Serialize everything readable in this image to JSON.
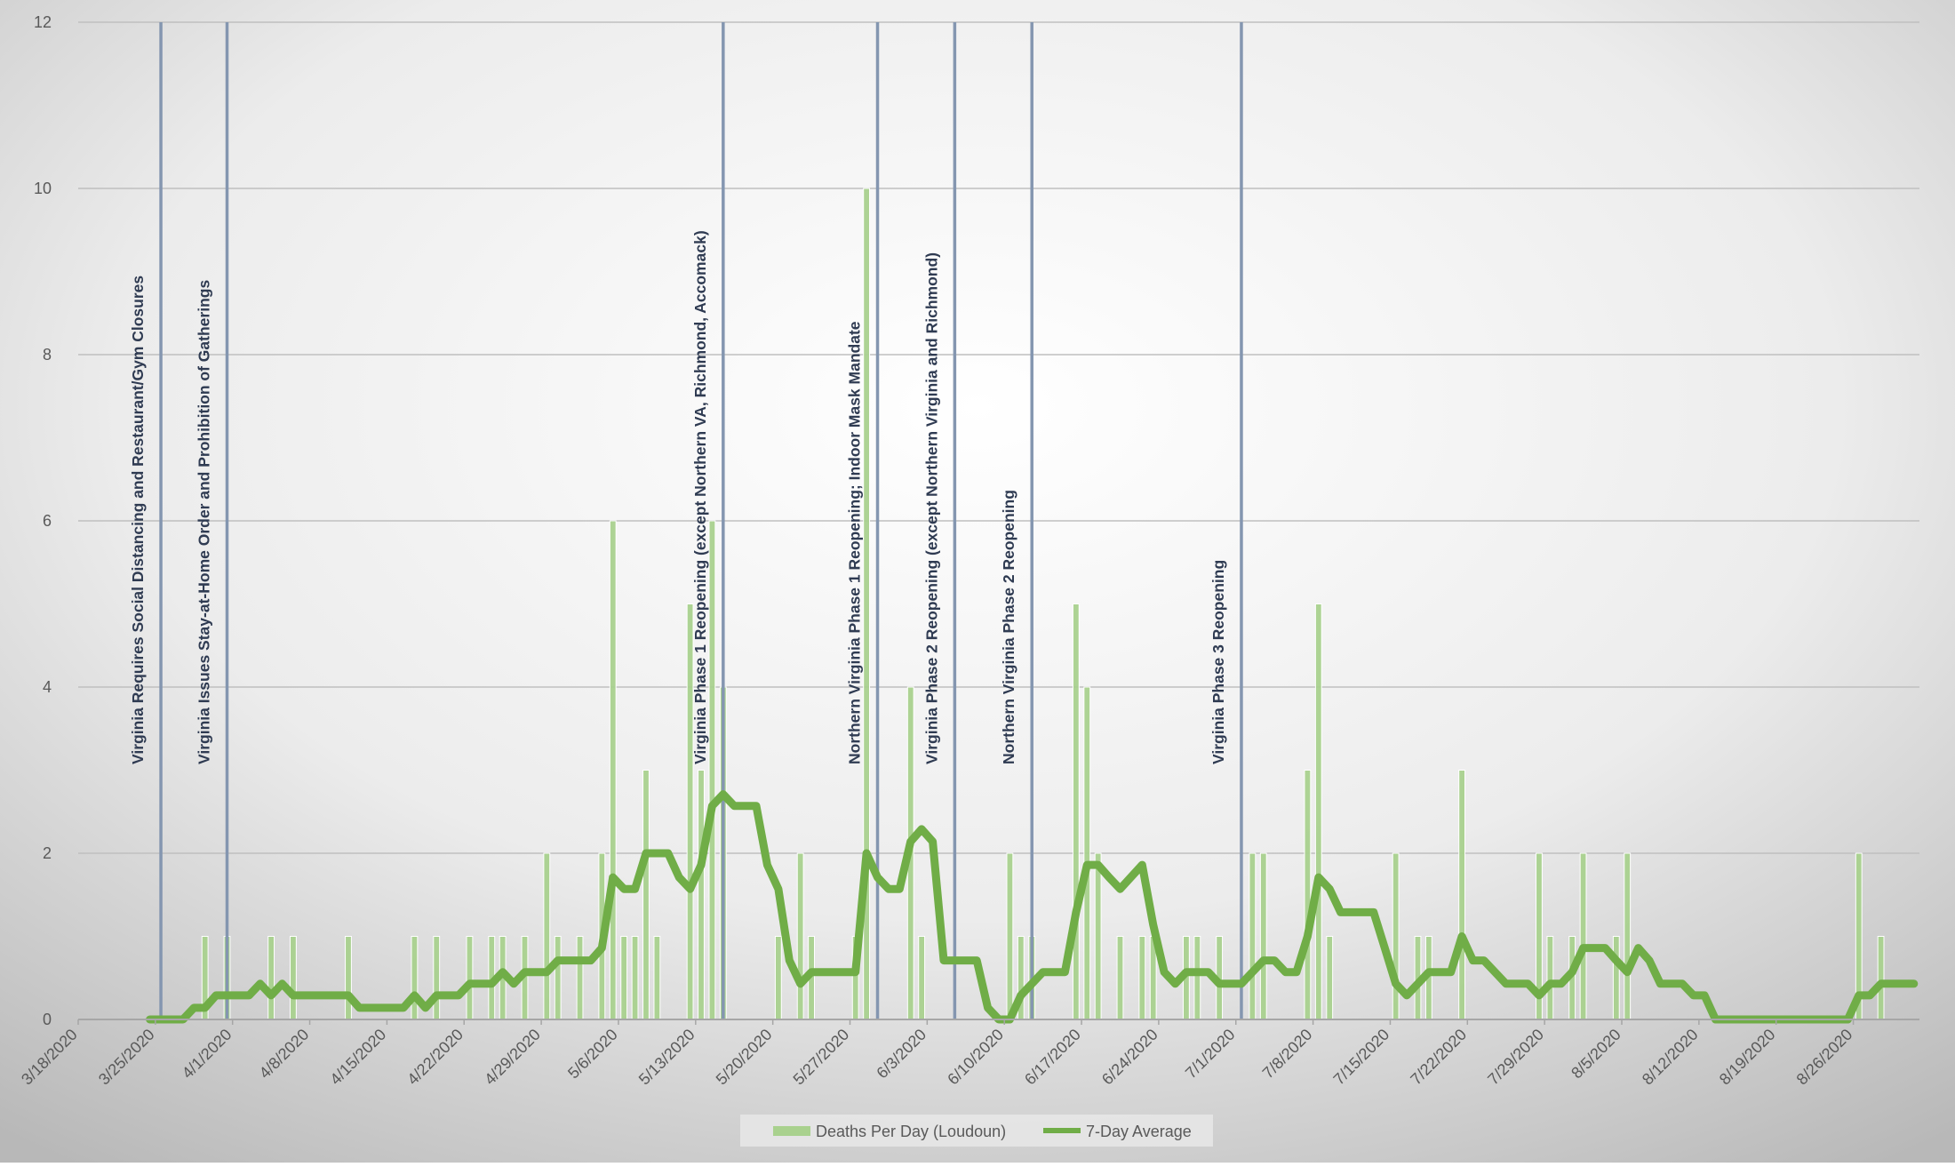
{
  "chart_data": {
    "type": "bar",
    "title": "",
    "xlabel": "",
    "ylabel": "",
    "x_start": "2020-03-18",
    "x_end": "2020-08-31",
    "ylim": [
      0,
      12
    ],
    "yticks": [
      0,
      2,
      4,
      6,
      8,
      10,
      12
    ],
    "xtick_labels": [
      "3/18/2020",
      "3/25/2020",
      "4/1/2020",
      "4/8/2020",
      "4/15/2020",
      "4/22/2020",
      "4/29/2020",
      "5/6/2020",
      "5/13/2020",
      "5/20/2020",
      "5/27/2020",
      "6/3/2020",
      "6/10/2020",
      "6/17/2020",
      "6/24/2020",
      "7/1/2020",
      "7/8/2020",
      "7/15/2020",
      "7/22/2020",
      "7/29/2020",
      "8/5/2020",
      "8/12/2020",
      "8/19/2020",
      "8/26/2020"
    ],
    "grid": true,
    "legend_position": "bottom",
    "colors": {
      "bars": "#a9d18e",
      "line": "#70ad47",
      "event_lines": "#8496b0",
      "grid": "#bfbfbf",
      "axis_text": "#595959",
      "annotation_text": "#2f3b52"
    },
    "series": [
      {
        "name": "Deaths Per Day (Loudoun)",
        "kind": "bar",
        "points": [
          {
            "x": "2020-03-29",
            "y": 1
          },
          {
            "x": "2020-03-31",
            "y": 1
          },
          {
            "x": "2020-04-04",
            "y": 1
          },
          {
            "x": "2020-04-06",
            "y": 1
          },
          {
            "x": "2020-04-11",
            "y": 1
          },
          {
            "x": "2020-04-17",
            "y": 1
          },
          {
            "x": "2020-04-19",
            "y": 1
          },
          {
            "x": "2020-04-22",
            "y": 1
          },
          {
            "x": "2020-04-24",
            "y": 1
          },
          {
            "x": "2020-04-25",
            "y": 1
          },
          {
            "x": "2020-04-27",
            "y": 1
          },
          {
            "x": "2020-04-29",
            "y": 2
          },
          {
            "x": "2020-04-30",
            "y": 1
          },
          {
            "x": "2020-05-02",
            "y": 1
          },
          {
            "x": "2020-05-04",
            "y": 2
          },
          {
            "x": "2020-05-05",
            "y": 6
          },
          {
            "x": "2020-05-06",
            "y": 1
          },
          {
            "x": "2020-05-07",
            "y": 1
          },
          {
            "x": "2020-05-08",
            "y": 3
          },
          {
            "x": "2020-05-09",
            "y": 1
          },
          {
            "x": "2020-05-12",
            "y": 5
          },
          {
            "x": "2020-05-13",
            "y": 3
          },
          {
            "x": "2020-05-14",
            "y": 6
          },
          {
            "x": "2020-05-15",
            "y": 4
          },
          {
            "x": "2020-05-20",
            "y": 1
          },
          {
            "x": "2020-05-22",
            "y": 2
          },
          {
            "x": "2020-05-23",
            "y": 1
          },
          {
            "x": "2020-05-27",
            "y": 1
          },
          {
            "x": "2020-05-28",
            "y": 10
          },
          {
            "x": "2020-06-01",
            "y": 4
          },
          {
            "x": "2020-06-02",
            "y": 1
          },
          {
            "x": "2020-06-10",
            "y": 2
          },
          {
            "x": "2020-06-11",
            "y": 1
          },
          {
            "x": "2020-06-12",
            "y": 1
          },
          {
            "x": "2020-06-16",
            "y": 5
          },
          {
            "x": "2020-06-17",
            "y": 4
          },
          {
            "x": "2020-06-18",
            "y": 2
          },
          {
            "x": "2020-06-20",
            "y": 1
          },
          {
            "x": "2020-06-22",
            "y": 1
          },
          {
            "x": "2020-06-23",
            "y": 1
          },
          {
            "x": "2020-06-26",
            "y": 1
          },
          {
            "x": "2020-06-27",
            "y": 1
          },
          {
            "x": "2020-06-29",
            "y": 1
          },
          {
            "x": "2020-07-02",
            "y": 2
          },
          {
            "x": "2020-07-03",
            "y": 2
          },
          {
            "x": "2020-07-07",
            "y": 3
          },
          {
            "x": "2020-07-08",
            "y": 5
          },
          {
            "x": "2020-07-09",
            "y": 1
          },
          {
            "x": "2020-07-15",
            "y": 2
          },
          {
            "x": "2020-07-17",
            "y": 1
          },
          {
            "x": "2020-07-18",
            "y": 1
          },
          {
            "x": "2020-07-21",
            "y": 3
          },
          {
            "x": "2020-07-28",
            "y": 2
          },
          {
            "x": "2020-07-29",
            "y": 1
          },
          {
            "x": "2020-07-31",
            "y": 1
          },
          {
            "x": "2020-08-01",
            "y": 2
          },
          {
            "x": "2020-08-04",
            "y": 1
          },
          {
            "x": "2020-08-05",
            "y": 2
          },
          {
            "x": "2020-08-26",
            "y": 2
          },
          {
            "x": "2020-08-28",
            "y": 1
          }
        ]
      },
      {
        "name": "7-Day Average",
        "kind": "line",
        "points": [
          {
            "x": "2020-03-24",
            "y": 0
          },
          {
            "x": "2020-03-26",
            "y": 0
          },
          {
            "x": "2020-03-27",
            "y": 0
          },
          {
            "x": "2020-03-28",
            "y": 0.14
          },
          {
            "x": "2020-03-29",
            "y": 0.14
          },
          {
            "x": "2020-03-30",
            "y": 0.29
          },
          {
            "x": "2020-04-02",
            "y": 0.29
          },
          {
            "x": "2020-04-03",
            "y": 0.43
          },
          {
            "x": "2020-04-04",
            "y": 0.29
          },
          {
            "x": "2020-04-05",
            "y": 0.43
          },
          {
            "x": "2020-04-06",
            "y": 0.29
          },
          {
            "x": "2020-04-11",
            "y": 0.29
          },
          {
            "x": "2020-04-12",
            "y": 0.14
          },
          {
            "x": "2020-04-16",
            "y": 0.14
          },
          {
            "x": "2020-04-17",
            "y": 0.29
          },
          {
            "x": "2020-04-18",
            "y": 0.14
          },
          {
            "x": "2020-04-19",
            "y": 0.29
          },
          {
            "x": "2020-04-21",
            "y": 0.29
          },
          {
            "x": "2020-04-22",
            "y": 0.43
          },
          {
            "x": "2020-04-24",
            "y": 0.43
          },
          {
            "x": "2020-04-25",
            "y": 0.57
          },
          {
            "x": "2020-04-26",
            "y": 0.43
          },
          {
            "x": "2020-04-27",
            "y": 0.57
          },
          {
            "x": "2020-04-29",
            "y": 0.57
          },
          {
            "x": "2020-04-30",
            "y": 0.71
          },
          {
            "x": "2020-05-03",
            "y": 0.71
          },
          {
            "x": "2020-05-04",
            "y": 0.86
          },
          {
            "x": "2020-05-05",
            "y": 1.71
          },
          {
            "x": "2020-05-06",
            "y": 1.57
          },
          {
            "x": "2020-05-07",
            "y": 1.57
          },
          {
            "x": "2020-05-08",
            "y": 2.0
          },
          {
            "x": "2020-05-09",
            "y": 2.0
          },
          {
            "x": "2020-05-10",
            "y": 2.0
          },
          {
            "x": "2020-05-11",
            "y": 1.71
          },
          {
            "x": "2020-05-12",
            "y": 1.57
          },
          {
            "x": "2020-05-13",
            "y": 1.86
          },
          {
            "x": "2020-05-14",
            "y": 2.57
          },
          {
            "x": "2020-05-15",
            "y": 2.71
          },
          {
            "x": "2020-05-16",
            "y": 2.57
          },
          {
            "x": "2020-05-18",
            "y": 2.57
          },
          {
            "x": "2020-05-19",
            "y": 1.86
          },
          {
            "x": "2020-05-20",
            "y": 1.57
          },
          {
            "x": "2020-05-21",
            "y": 0.71
          },
          {
            "x": "2020-05-22",
            "y": 0.43
          },
          {
            "x": "2020-05-23",
            "y": 0.57
          },
          {
            "x": "2020-05-27",
            "y": 0.57
          },
          {
            "x": "2020-05-28",
            "y": 2.0
          },
          {
            "x": "2020-05-29",
            "y": 1.71
          },
          {
            "x": "2020-05-30",
            "y": 1.57
          },
          {
            "x": "2020-05-31",
            "y": 1.57
          },
          {
            "x": "2020-06-01",
            "y": 2.14
          },
          {
            "x": "2020-06-02",
            "y": 2.29
          },
          {
            "x": "2020-06-03",
            "y": 2.14
          },
          {
            "x": "2020-06-04",
            "y": 0.71
          },
          {
            "x": "2020-06-07",
            "y": 0.71
          },
          {
            "x": "2020-06-08",
            "y": 0.14
          },
          {
            "x": "2020-06-09",
            "y": 0
          },
          {
            "x": "2020-06-10",
            "y": 0
          },
          {
            "x": "2020-06-11",
            "y": 0.29
          },
          {
            "x": "2020-06-12",
            "y": 0.43
          },
          {
            "x": "2020-06-13",
            "y": 0.57
          },
          {
            "x": "2020-06-15",
            "y": 0.57
          },
          {
            "x": "2020-06-16",
            "y": 1.29
          },
          {
            "x": "2020-06-17",
            "y": 1.86
          },
          {
            "x": "2020-06-18",
            "y": 1.86
          },
          {
            "x": "2020-06-19",
            "y": 1.71
          },
          {
            "x": "2020-06-20",
            "y": 1.57
          },
          {
            "x": "2020-06-22",
            "y": 1.86
          },
          {
            "x": "2020-06-23",
            "y": 1.14
          },
          {
            "x": "2020-06-24",
            "y": 0.57
          },
          {
            "x": "2020-06-25",
            "y": 0.43
          },
          {
            "x": "2020-06-26",
            "y": 0.57
          },
          {
            "x": "2020-06-28",
            "y": 0.57
          },
          {
            "x": "2020-06-29",
            "y": 0.43
          },
          {
            "x": "2020-07-01",
            "y": 0.43
          },
          {
            "x": "2020-07-02",
            "y": 0.57
          },
          {
            "x": "2020-07-03",
            "y": 0.71
          },
          {
            "x": "2020-07-04",
            "y": 0.71
          },
          {
            "x": "2020-07-05",
            "y": 0.57
          },
          {
            "x": "2020-07-06",
            "y": 0.57
          },
          {
            "x": "2020-07-07",
            "y": 1.0
          },
          {
            "x": "2020-07-08",
            "y": 1.71
          },
          {
            "x": "2020-07-09",
            "y": 1.57
          },
          {
            "x": "2020-07-10",
            "y": 1.29
          },
          {
            "x": "2020-07-13",
            "y": 1.29
          },
          {
            "x": "2020-07-14",
            "y": 0.86
          },
          {
            "x": "2020-07-15",
            "y": 0.43
          },
          {
            "x": "2020-07-16",
            "y": 0.29
          },
          {
            "x": "2020-07-17",
            "y": 0.43
          },
          {
            "x": "2020-07-18",
            "y": 0.57
          },
          {
            "x": "2020-07-20",
            "y": 0.57
          },
          {
            "x": "2020-07-21",
            "y": 1.0
          },
          {
            "x": "2020-07-22",
            "y": 0.71
          },
          {
            "x": "2020-07-23",
            "y": 0.71
          },
          {
            "x": "2020-07-24",
            "y": 0.57
          },
          {
            "x": "2020-07-25",
            "y": 0.43
          },
          {
            "x": "2020-07-27",
            "y": 0.43
          },
          {
            "x": "2020-07-28",
            "y": 0.29
          },
          {
            "x": "2020-07-29",
            "y": 0.43
          },
          {
            "x": "2020-07-30",
            "y": 0.43
          },
          {
            "x": "2020-07-31",
            "y": 0.57
          },
          {
            "x": "2020-08-01",
            "y": 0.86
          },
          {
            "x": "2020-08-03",
            "y": 0.86
          },
          {
            "x": "2020-08-04",
            "y": 0.71
          },
          {
            "x": "2020-08-05",
            "y": 0.57
          },
          {
            "x": "2020-08-06",
            "y": 0.86
          },
          {
            "x": "2020-08-07",
            "y": 0.71
          },
          {
            "x": "2020-08-08",
            "y": 0.43
          },
          {
            "x": "2020-08-10",
            "y": 0.43
          },
          {
            "x": "2020-08-11",
            "y": 0.29
          },
          {
            "x": "2020-08-12",
            "y": 0.29
          },
          {
            "x": "2020-08-13",
            "y": 0
          },
          {
            "x": "2020-08-25",
            "y": 0
          },
          {
            "x": "2020-08-26",
            "y": 0.29
          },
          {
            "x": "2020-08-27",
            "y": 0.29
          },
          {
            "x": "2020-08-28",
            "y": 0.43
          },
          {
            "x": "2020-08-31",
            "y": 0.43
          }
        ]
      }
    ],
    "annotations": [
      {
        "date": "2020-03-25",
        "label": "Virginia Requires Social Distancing and Restaurant/Gym Closures"
      },
      {
        "date": "2020-03-31",
        "label": "Virginia Issues Stay-at-Home Order and Prohibition of Gatherings"
      },
      {
        "date": "2020-05-15",
        "label": "Virginia Phase 1 Reopening (except Northern VA, Richmond, Accomack)"
      },
      {
        "date": "2020-05-29",
        "label": "Northern Virginia Phase 1 Reopening; Indoor Mask Mandate"
      },
      {
        "date": "2020-06-05",
        "label": "Virginia Phase 2 Reopening (except Northern Virginia and Richmond)"
      },
      {
        "date": "2020-06-12",
        "label": "Northern Virginia Phase 2 Reopening"
      },
      {
        "date": "2020-07-01",
        "label": "Virginia Phase 3 Reopening"
      }
    ]
  }
}
